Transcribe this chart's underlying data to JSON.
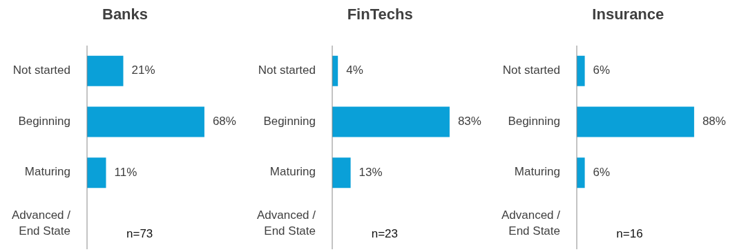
{
  "chart_data": [
    {
      "type": "bar",
      "orientation": "horizontal",
      "title": "Banks",
      "categories": [
        "Not started",
        "Beginning",
        "Maturing",
        "Advanced / End State"
      ],
      "values": [
        21,
        68,
        11,
        null
      ],
      "value_labels": [
        "21%",
        "68%",
        "11%",
        null
      ],
      "color": "#0aa0d8",
      "annotations": [
        "n=73"
      ]
    },
    {
      "type": "bar",
      "orientation": "horizontal",
      "title": "FinTechs",
      "categories": [
        "Not started",
        "Beginning",
        "Maturing",
        "Advanced / End State"
      ],
      "values": [
        4,
        83,
        13,
        null
      ],
      "value_labels": [
        "4%",
        "83%",
        "13%",
        null
      ],
      "color": "#0aa0d8",
      "annotations": [
        "n=23"
      ]
    },
    {
      "type": "bar",
      "orientation": "horizontal",
      "title": "Insurance",
      "categories": [
        "Not started",
        "Beginning",
        "Maturing",
        "Advanced / End State"
      ],
      "values": [
        6,
        88,
        6,
        null
      ],
      "value_labels": [
        "6%",
        "88%",
        "6%",
        null
      ],
      "color": "#0aa0d8",
      "annotations": [
        "n=16"
      ]
    }
  ]
}
